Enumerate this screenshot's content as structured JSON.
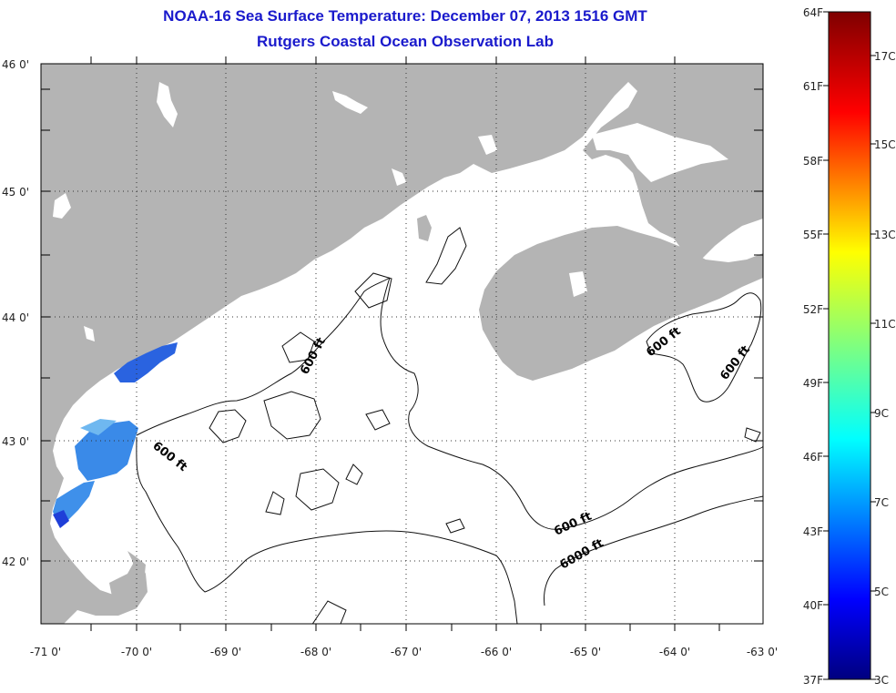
{
  "title": "NOAA-16 Sea Surface Temperature:  December 07, 2013 1516 GMT",
  "subtitle": "Rutgers Coastal Ocean Observation Lab",
  "map": {
    "lon_labels": [
      "-71 0'",
      "-70 0'",
      "-69 0'",
      "-68 0'",
      "-67 0'",
      "-66 0'",
      "-65 0'",
      "-64 0'",
      "-63 0'"
    ],
    "lat_labels": [
      "46 0'",
      "45 0'",
      "44 0'",
      "43 0'",
      "42 0'"
    ],
    "contour_labels": [
      "600 ft",
      "600 ft",
      "600 ft",
      "600 ft",
      "600 ft",
      "6000 ft"
    ],
    "grid": "dotted",
    "land_color": "#b4b4b4",
    "ocean_color": "#ffffff"
  },
  "colorbar": {
    "fahrenheit": [
      "64F",
      "61F",
      "58F",
      "55F",
      "52F",
      "49F",
      "46F",
      "43F",
      "40F",
      "37F"
    ],
    "celsius": [
      "17C",
      "15C",
      "13C",
      "11C",
      "9C",
      "7C",
      "5C",
      "3C"
    ],
    "colors": [
      "#00007f",
      "#0000ff",
      "#007fff",
      "#00ffff",
      "#7fff7f",
      "#ffff00",
      "#ff7f00",
      "#ff0000",
      "#7f0000"
    ]
  }
}
